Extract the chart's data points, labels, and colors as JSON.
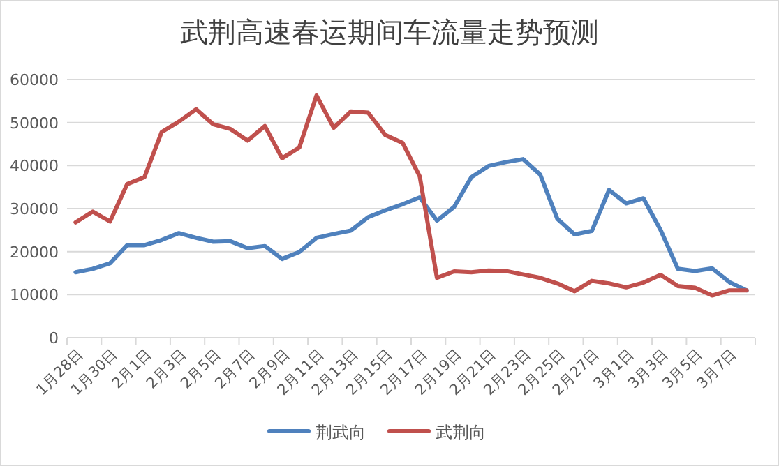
{
  "chart_data": {
    "type": "line",
    "title": "武荆高速春运期间车流量走势预测",
    "categories": [
      "1月28日",
      null,
      "1月30日",
      null,
      "2月1日",
      null,
      "2月3日",
      null,
      "2月5日",
      null,
      "2月7日",
      null,
      "2月9日",
      null,
      "2月11日",
      null,
      "2月13日",
      null,
      "2月15日",
      null,
      "2月17日",
      null,
      "2月19日",
      null,
      "2月21日",
      null,
      "2月23日",
      null,
      "2月25日",
      null,
      "2月27日",
      null,
      "3月1日",
      null,
      "3月3日",
      null,
      "3月5日",
      null,
      "3月7日",
      null
    ],
    "series": [
      {
        "name": "荆武向",
        "color": "#4f81bd",
        "values": [
          15200,
          16000,
          17300,
          21500,
          21500,
          22700,
          24300,
          23200,
          22300,
          22400,
          20800,
          21300,
          18300,
          19900,
          23200,
          24100,
          24900,
          28000,
          29600,
          31000,
          32600,
          27200,
          30400,
          37300,
          39900,
          40800,
          41500,
          37900,
          27600,
          24000,
          24800,
          34300,
          31200,
          32400,
          25000,
          16000,
          15500,
          16100,
          12900,
          11000
        ]
      },
      {
        "name": "武荆向",
        "color": "#c0504d",
        "values": [
          26800,
          29300,
          27000,
          35700,
          37300,
          47800,
          50200,
          53100,
          49600,
          48500,
          45800,
          49200,
          41700,
          44200,
          56300,
          48800,
          52600,
          52300,
          47100,
          45300,
          37500,
          13900,
          15400,
          15200,
          15600,
          15500,
          14700,
          13900,
          12600,
          10800,
          13200,
          12600,
          11700,
          12800,
          14600,
          12000,
          11600,
          9800,
          11000,
          11000
        ]
      }
    ],
    "ylim": [
      0,
      60000
    ],
    "yticks": [
      0,
      10000,
      20000,
      30000,
      40000,
      50000,
      60000
    ],
    "grid": "y",
    "legend": "bottom"
  }
}
